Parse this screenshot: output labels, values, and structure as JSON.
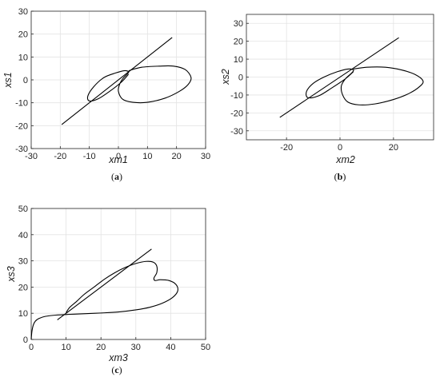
{
  "chart_data": [
    {
      "type": "line",
      "panel_label": "a",
      "xlabel": "xm1",
      "ylabel": "xs1",
      "xlim": [
        -30,
        30
      ],
      "ylim": [
        -30,
        30
      ],
      "xticks": [
        -30,
        -20,
        -10,
        0,
        10,
        20,
        30
      ],
      "yticks": [
        -30,
        -20,
        -10,
        0,
        10,
        20,
        30
      ],
      "grid": true,
      "series": [
        {
          "style": "straight-line",
          "x": [
            -19.5,
            18.5
          ],
          "y": [
            -19.5,
            18.5
          ]
        },
        {
          "style": "loop",
          "x": [
            3.5,
            8,
            14,
            19,
            23,
            25,
            24,
            21,
            16,
            10,
            5,
            1.5,
            0,
            0.4,
            1.5,
            3,
            3.5,
            2,
            -1,
            -5,
            -8.5,
            -10.5,
            -10,
            -7,
            -3,
            1,
            3.5
          ],
          "y": [
            4,
            5.5,
            6,
            6,
            4.5,
            1,
            -2,
            -5,
            -8,
            -9.8,
            -9.8,
            -8.5,
            -5,
            -2,
            0.5,
            2.5,
            3.5,
            4,
            3,
            1,
            -3,
            -7,
            -9.2,
            -8.3,
            -5,
            -1,
            2.5
          ]
        }
      ]
    },
    {
      "type": "line",
      "panel_label": "b",
      "xlabel": "xm2",
      "ylabel": "xs2",
      "xlim": [
        -35,
        35
      ],
      "ylim": [
        -35,
        35
      ],
      "xticks": [
        -20,
        0,
        20
      ],
      "yticks": [
        -30,
        -20,
        -10,
        0,
        10,
        20,
        30
      ],
      "grid": true,
      "series": [
        {
          "style": "straight-line",
          "x": [
            -22.5,
            22
          ],
          "y": [
            -22.5,
            22
          ]
        },
        {
          "style": "loop",
          "x": [
            5,
            10,
            17,
            23,
            28,
            31,
            30,
            26,
            20,
            13,
            7,
            3,
            1,
            0.5,
            2,
            4.5,
            5,
            3,
            -1,
            -6,
            -10,
            -12.5,
            -12,
            -8,
            -3,
            2,
            5
          ],
          "y": [
            4.5,
            5.5,
            5.5,
            4,
            1.5,
            -2,
            -5,
            -9,
            -12.5,
            -15,
            -15.5,
            -14,
            -10,
            -5,
            -1,
            2.5,
            4,
            4.5,
            3,
            0,
            -3.5,
            -8,
            -11.5,
            -10.5,
            -6,
            -1,
            3
          ]
        }
      ]
    },
    {
      "type": "line",
      "panel_label": "c",
      "xlabel": "xm3",
      "ylabel": "xs3",
      "xlim": [
        0,
        50
      ],
      "ylim": [
        0,
        50
      ],
      "xticks": [
        0,
        10,
        20,
        30,
        40,
        50
      ],
      "yticks": [
        0,
        10,
        20,
        30,
        40,
        50
      ],
      "grid": true,
      "series": [
        {
          "style": "straight-line",
          "x": [
            7.5,
            34.5
          ],
          "y": [
            7.5,
            34.5
          ]
        },
        {
          "style": "path",
          "x": [
            0,
            0.2,
            0.6,
            1.2,
            2.2,
            4,
            7,
            11,
            15,
            20,
            25,
            30,
            34,
            37.5,
            40.5,
            42,
            41.5,
            39.5,
            37,
            35.5,
            35.2,
            36,
            36,
            35,
            33,
            30,
            27,
            24,
            21,
            18,
            15,
            13,
            11,
            10
          ],
          "y": [
            0,
            3,
            5.5,
            7,
            8,
            8.8,
            9.3,
            9.6,
            9.8,
            10.1,
            10.5,
            11.3,
            12.3,
            13.8,
            16,
            18.5,
            21,
            22.5,
            22.8,
            22.5,
            23.5,
            25.5,
            28,
            29.5,
            29.8,
            29,
            27.5,
            25.5,
            23,
            20,
            17,
            14.5,
            12.2,
            10.2
          ]
        }
      ]
    }
  ]
}
